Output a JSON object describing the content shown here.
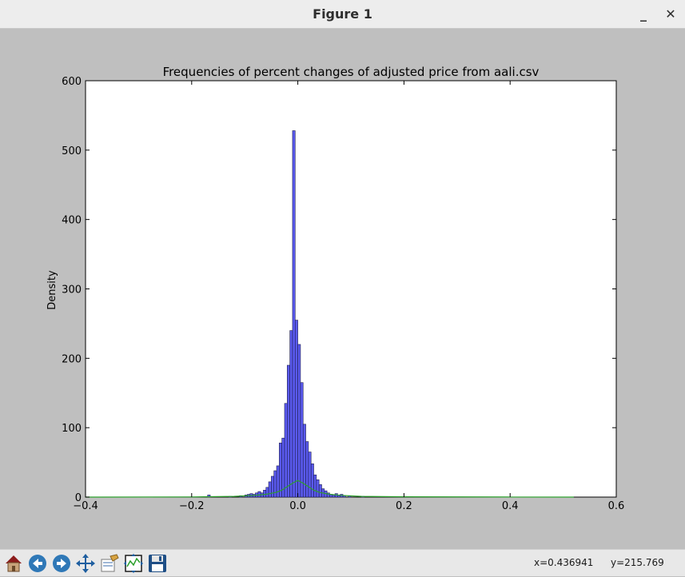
{
  "window": {
    "title": "Figure 1",
    "minimize_label": "_",
    "close_label": "✕"
  },
  "toolbar": {
    "buttons": [
      {
        "name": "home-button",
        "icon": "home-icon"
      },
      {
        "name": "back-button",
        "icon": "arrow-left-icon"
      },
      {
        "name": "forward-button",
        "icon": "arrow-right-icon"
      },
      {
        "name": "pan-button",
        "icon": "move-icon"
      },
      {
        "name": "zoom-button",
        "icon": "zoom-rect-icon"
      },
      {
        "name": "subplots-button",
        "icon": "subplots-icon"
      },
      {
        "name": "save-button",
        "icon": "floppy-disk-icon"
      }
    ],
    "x_readout": "x=0.436941",
    "y_readout": "y=215.769"
  },
  "chart_data": {
    "type": "bar",
    "title": "Frequencies of percent changes of adjusted price from aali.csv",
    "xlabel": "",
    "ylabel": "Density",
    "xlim": [
      -0.4,
      0.6
    ],
    "ylim": [
      0,
      600
    ],
    "xticks": [
      -0.4,
      -0.2,
      0.0,
      0.2,
      0.4,
      0.6
    ],
    "xtick_labels": [
      "−0.4",
      "−0.2",
      "0.0",
      "0.2",
      "0.4",
      "0.6"
    ],
    "yticks": [
      0,
      100,
      200,
      300,
      400,
      500,
      600
    ],
    "ytick_labels": [
      "0",
      "100",
      "200",
      "300",
      "400",
      "500",
      "600"
    ],
    "grid": false,
    "bar_color": "#5a5aef",
    "bar_edge": "#1f1f4f",
    "line_color": "#2ca02c",
    "bin_width": 0.005,
    "bins": [
      {
        "x": -0.17,
        "y": 3
      },
      {
        "x": -0.13,
        "y": 1
      },
      {
        "x": -0.11,
        "y": 2
      },
      {
        "x": -0.1,
        "y": 3
      },
      {
        "x": -0.095,
        "y": 4
      },
      {
        "x": -0.09,
        "y": 5
      },
      {
        "x": -0.085,
        "y": 4
      },
      {
        "x": -0.08,
        "y": 6
      },
      {
        "x": -0.075,
        "y": 8
      },
      {
        "x": -0.07,
        "y": 6
      },
      {
        "x": -0.065,
        "y": 10
      },
      {
        "x": -0.06,
        "y": 14
      },
      {
        "x": -0.055,
        "y": 22
      },
      {
        "x": -0.05,
        "y": 30
      },
      {
        "x": -0.045,
        "y": 38
      },
      {
        "x": -0.04,
        "y": 45
      },
      {
        "x": -0.035,
        "y": 78
      },
      {
        "x": -0.03,
        "y": 85
      },
      {
        "x": -0.025,
        "y": 135
      },
      {
        "x": -0.02,
        "y": 190
      },
      {
        "x": -0.015,
        "y": 240
      },
      {
        "x": -0.01,
        "y": 528
      },
      {
        "x": -0.005,
        "y": 255
      },
      {
        "x": 0.0,
        "y": 220
      },
      {
        "x": 0.005,
        "y": 165
      },
      {
        "x": 0.01,
        "y": 105
      },
      {
        "x": 0.015,
        "y": 80
      },
      {
        "x": 0.02,
        "y": 65
      },
      {
        "x": 0.025,
        "y": 48
      },
      {
        "x": 0.03,
        "y": 32
      },
      {
        "x": 0.035,
        "y": 25
      },
      {
        "x": 0.04,
        "y": 18
      },
      {
        "x": 0.045,
        "y": 12
      },
      {
        "x": 0.05,
        "y": 9
      },
      {
        "x": 0.055,
        "y": 6
      },
      {
        "x": 0.06,
        "y": 4
      },
      {
        "x": 0.065,
        "y": 3
      },
      {
        "x": 0.07,
        "y": 5
      },
      {
        "x": 0.075,
        "y": 3
      },
      {
        "x": 0.08,
        "y": 4
      },
      {
        "x": 0.085,
        "y": 2
      },
      {
        "x": 0.095,
        "y": 2
      },
      {
        "x": 0.12,
        "y": 1
      }
    ],
    "density_curve": {
      "x": [
        -0.4,
        -0.2,
        -0.12,
        -0.08,
        -0.06,
        -0.04,
        -0.03,
        -0.02,
        -0.01,
        0.0,
        0.01,
        0.02,
        0.03,
        0.04,
        0.06,
        0.08,
        0.12,
        0.2,
        0.4,
        0.52
      ],
      "y": [
        0,
        0.2,
        1,
        2.5,
        4,
        7,
        10,
        15,
        20,
        24,
        20,
        15,
        10,
        7,
        4,
        2.5,
        1,
        0.4,
        0.1,
        0
      ]
    }
  }
}
